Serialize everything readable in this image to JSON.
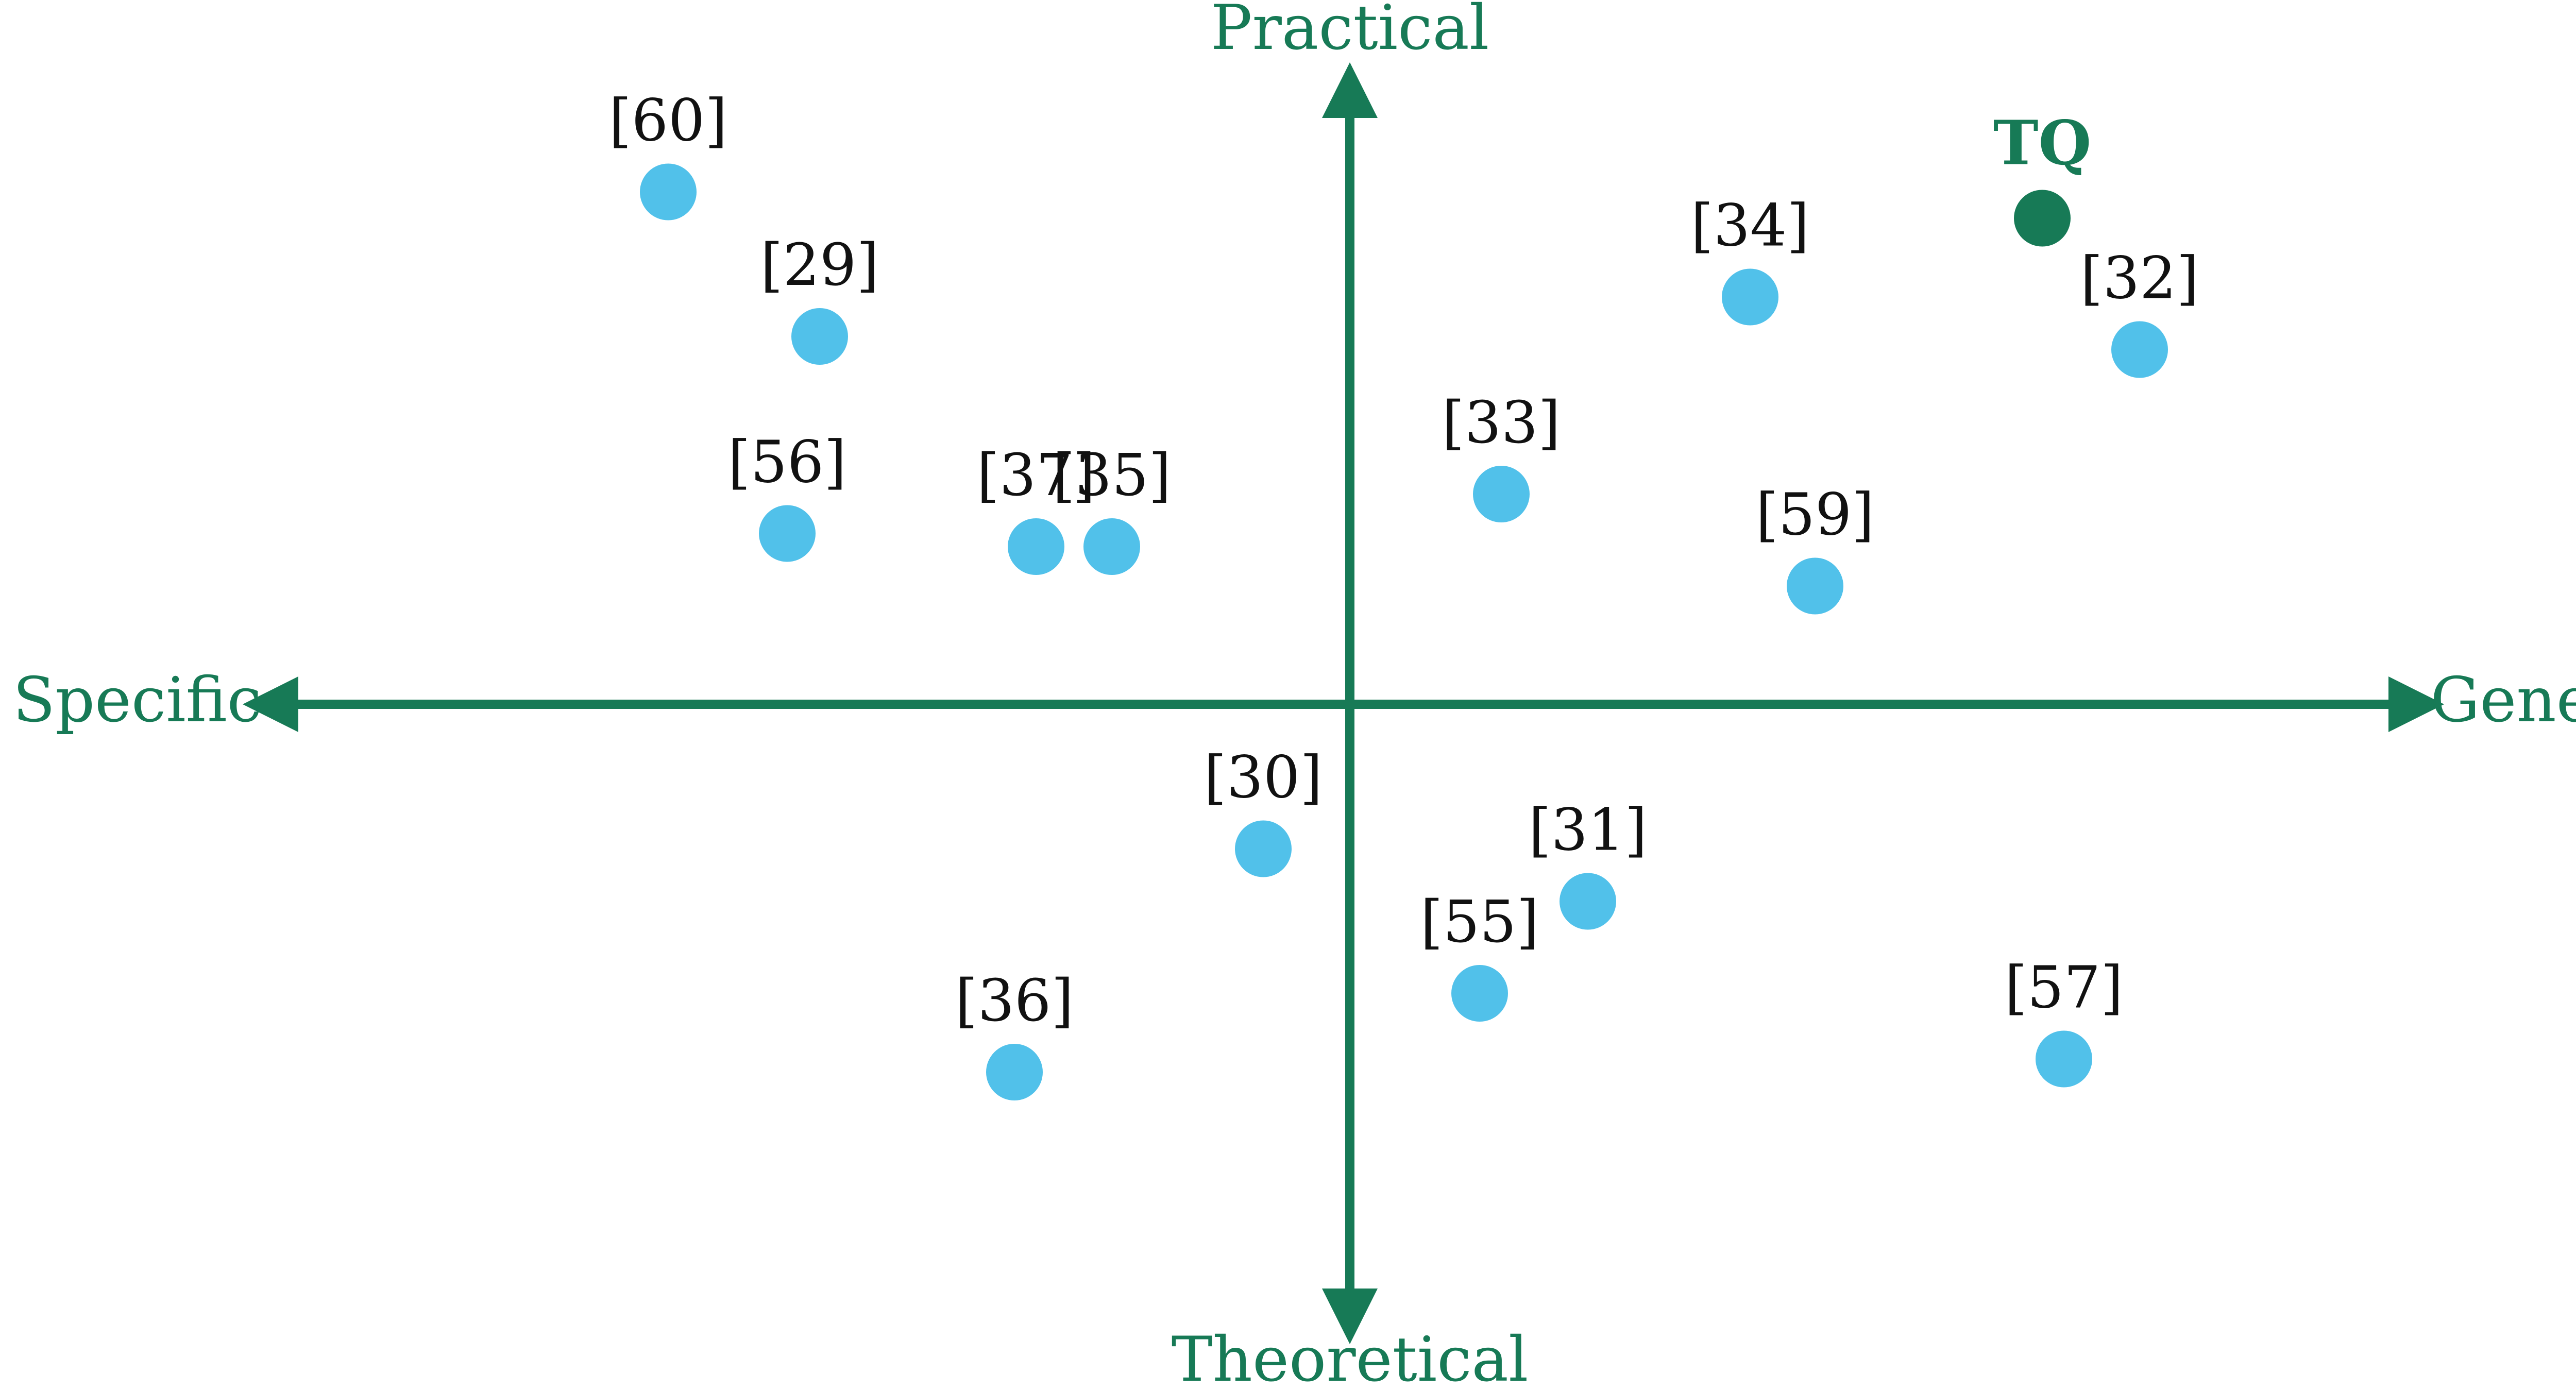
{
  "chart_data": {
    "type": "scatter",
    "title": "",
    "axes": {
      "x": {
        "negative_label": "Specific",
        "positive_label": "General",
        "range": [
          -10,
          10
        ]
      },
      "y": {
        "positive_label": "Practical",
        "negative_label": "Theoretical",
        "range": [
          -5,
          5
        ]
      }
    },
    "grid": false,
    "points": [
      {
        "label": "[60]",
        "x": -6.3,
        "y": 3.9
      },
      {
        "label": "[29]",
        "x": -4.9,
        "y": 2.8
      },
      {
        "label": "[56]",
        "x": -5.2,
        "y": 1.3
      },
      {
        "label": "[37]",
        "x": -2.9,
        "y": 1.2
      },
      {
        "label": "[35]",
        "x": -2.2,
        "y": 1.2
      },
      {
        "label": "[33]",
        "x": 1.4,
        "y": 1.6
      },
      {
        "label": "[34]",
        "x": 3.7,
        "y": 3.1
      },
      {
        "label": "[59]",
        "x": 4.3,
        "y": 0.9
      },
      {
        "label": "[32]",
        "x": 7.3,
        "y": 2.7
      },
      {
        "label": "[30]",
        "x": -0.8,
        "y": -1.1
      },
      {
        "label": "[31]",
        "x": 2.2,
        "y": -1.5
      },
      {
        "label": "[55]",
        "x": 1.2,
        "y": -2.2
      },
      {
        "label": "[36]",
        "x": -3.1,
        "y": -2.8
      },
      {
        "label": "[57]",
        "x": 6.6,
        "y": -2.7
      }
    ],
    "highlight": {
      "label": "TQ",
      "x": 6.4,
      "y": 3.7
    },
    "colors": {
      "axis": "#177a56",
      "point": "#51c1ea",
      "highlight": "#177a56",
      "label": "#111111"
    }
  }
}
